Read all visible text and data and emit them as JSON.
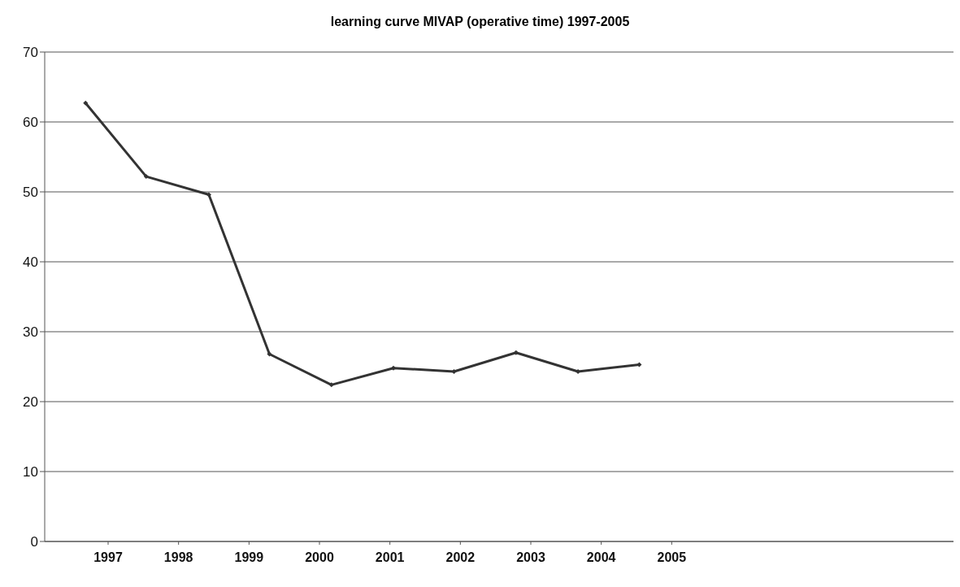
{
  "chart_data": {
    "type": "line",
    "title": "learning curve MIVAP (operative time) 1997-2005",
    "x": [
      1996.68,
      1997.54,
      1998.43,
      1999.29,
      2000.17,
      2001.05,
      2001.91,
      2002.79,
      2003.67,
      2004.54
    ],
    "series": [
      {
        "color": "#333333",
        "values": [
          62.7,
          52.2,
          49.6,
          26.8,
          22.4,
          24.8,
          24.3,
          27.0,
          24.3,
          25.3
        ]
      }
    ],
    "xlim": [
      1996.1,
      2009
    ],
    "xticks": [
      1997,
      1998,
      1999,
      2000,
      2001,
      2002,
      2003,
      2004,
      2005
    ],
    "ylim": [
      0,
      70
    ],
    "yticks": [
      0,
      10,
      20,
      30,
      40,
      50,
      60,
      70
    ],
    "grid": "y",
    "marker": "diamond",
    "line_style": "solid"
  }
}
